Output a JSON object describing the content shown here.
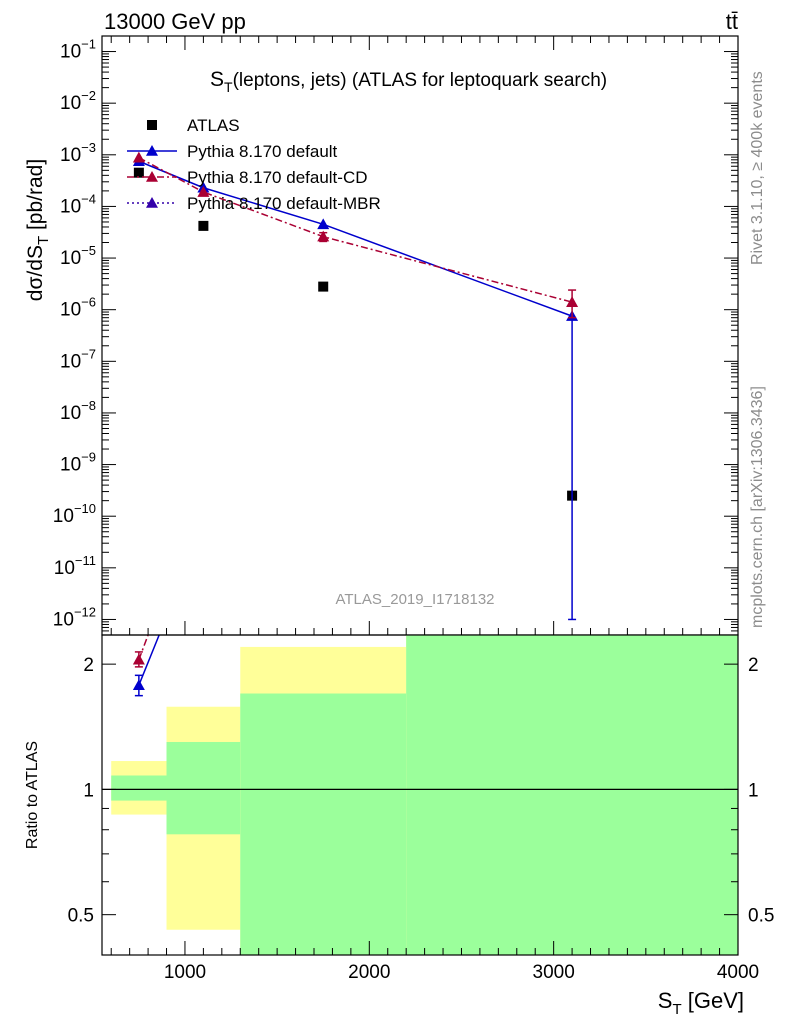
{
  "header": {
    "collision": "13000 GeV pp",
    "process": "tt̄"
  },
  "side_labels": {
    "rivet": "Rivet 3.1.10, ≥ 400k events",
    "mcplots": "mcplots.cern.ch [arXiv:1306.3436]"
  },
  "colors": {
    "atlas": "#000000",
    "default": "#0000cc",
    "default_cd": "#aa0033",
    "default_mbr": "#3300aa",
    "band_inner": "#9bff9b",
    "band_outer": "#ffff99"
  },
  "chart_data": [
    {
      "type": "line",
      "panel": "main",
      "title": "S_T(leptons, jets) (ATLAS for leptoquark search)",
      "ylabel": "dσ/dS_T [pb/rad]",
      "yscale": "log",
      "xlim": [
        550,
        4000
      ],
      "ylim": [
        5e-13,
        0.2
      ],
      "yticks": [
        {
          "label": "10",
          "exp": "−12",
          "value": 1e-12
        },
        {
          "label": "10",
          "exp": "−11",
          "value": 1e-11
        },
        {
          "label": "10",
          "exp": "−10",
          "value": 1e-10
        },
        {
          "label": "10",
          "exp": "−9",
          "value": 1e-09
        },
        {
          "label": "10",
          "exp": "−8",
          "value": 1e-08
        },
        {
          "label": "10",
          "exp": "−7",
          "value": 1e-07
        },
        {
          "label": "10",
          "exp": "−6",
          "value": 1e-06
        },
        {
          "label": "10",
          "exp": "−5",
          "value": 1e-05
        },
        {
          "label": "10",
          "exp": "−4",
          "value": 0.0001
        },
        {
          "label": "10",
          "exp": "−3",
          "value": 0.001
        },
        {
          "label": "10",
          "exp": "−2",
          "value": 0.01
        },
        {
          "label": "10",
          "exp": "−1",
          "value": 0.1
        }
      ],
      "legend_position": "top-left",
      "watermark": "ATLAS_2019_I1718132",
      "series": [
        {
          "name": "ATLAS",
          "key": "atlas",
          "marker": "square",
          "x": [
            750,
            1100,
            1750,
            3100
          ],
          "y": [
            0.00045,
            4.2e-05,
            2.8e-06,
            2.5e-10
          ]
        },
        {
          "name": "Pythia 8.170 default",
          "key": "default",
          "marker": "triangle",
          "line": "solid",
          "x": [
            750,
            1100,
            1750,
            3100
          ],
          "y": [
            0.00075,
            0.00023,
            4.5e-05,
            7.5e-07
          ],
          "yerr_low": [
            null,
            null,
            null,
            1e-12
          ],
          "yerr_high": [
            null,
            null,
            null,
            null
          ]
        },
        {
          "name": "Pythia 8.170 default-CD",
          "key": "default_cd",
          "marker": "triangle",
          "line": "dashdot",
          "x": [
            750,
            1100,
            1750,
            3100
          ],
          "y": [
            0.00088,
            0.00019,
            2.6e-05,
            1.4e-06
          ],
          "yerr_low": [
            null,
            null,
            2.1e-05,
            7e-07
          ],
          "yerr_high": [
            null,
            null,
            3.1e-05,
            2.4e-06
          ]
        },
        {
          "name": "Pythia 8.170 default-MBR",
          "key": "default_mbr",
          "marker": "triangle",
          "line": "dotted",
          "x": [],
          "y": []
        }
      ]
    },
    {
      "type": "line",
      "panel": "ratio",
      "ylabel": "Ratio to ATLAS",
      "xlabel": "S_T [GeV]",
      "yscale": "log",
      "xlim": [
        550,
        4000
      ],
      "ylim": [
        0.4,
        2.35
      ],
      "xticks": [
        1000,
        2000,
        3000,
        4000
      ],
      "yticks": [
        {
          "label": "0.5",
          "value": 0.5
        },
        {
          "label": "1",
          "value": 1
        },
        {
          "label": "2",
          "value": 2
        }
      ],
      "reference_line": 1,
      "bands": [
        {
          "x0": 600,
          "x1": 900,
          "outer": [
            0.87,
            1.17
          ],
          "inner": [
            0.94,
            1.08
          ]
        },
        {
          "x0": 900,
          "x1": 1300,
          "outer": [
            0.46,
            1.58
          ],
          "inner": [
            0.78,
            1.3
          ]
        },
        {
          "x0": 1300,
          "x1": 2200,
          "outer": [
            0.4,
            2.2
          ],
          "inner": [
            0.4,
            1.7
          ]
        },
        {
          "x0": 2200,
          "x1": 4000,
          "outer": [
            0.4,
            2.35
          ],
          "inner": [
            0.4,
            2.35
          ]
        }
      ],
      "series": [
        {
          "name": "Pythia 8.170 default",
          "key": "default",
          "x": [
            750,
            860
          ],
          "y": [
            1.78,
            2.4
          ],
          "yerr_low": [
            1.68,
            null
          ],
          "yerr_high": [
            1.88,
            null
          ]
        },
        {
          "name": "Pythia 8.170 default-CD",
          "key": "default_cd",
          "x": [
            750,
            800
          ],
          "y": [
            2.05,
            2.4
          ],
          "yerr_low": [
            1.97,
            null
          ],
          "yerr_high": [
            2.14,
            null
          ]
        }
      ]
    }
  ]
}
